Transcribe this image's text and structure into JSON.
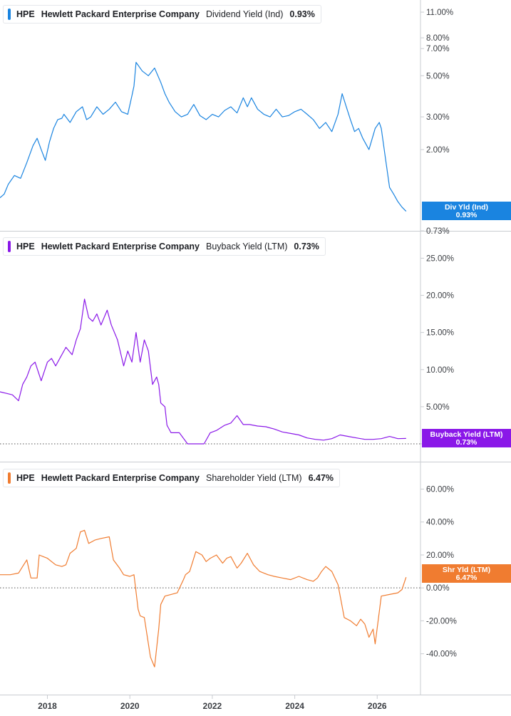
{
  "colors": {
    "dividend": "#1a84e0",
    "buyback": "#8a18e8",
    "shareholder": "#f07c30",
    "grid": "#c9ccd1",
    "axis_text": "#3a3d42",
    "zero_line": "#555555"
  },
  "chart_data": [
    {
      "type": "line",
      "title": "HPE Hewlett Packard Enterprise Company Dividend Yield (Ind) 0.93%",
      "legend": {
        "ticker": "HPE",
        "company": "Hewlett Packard Enterprise Company",
        "metric": "Dividend Yield (Ind)",
        "value": "0.93%"
      },
      "scale": "log",
      "ylim": [
        0.73,
        11.5
      ],
      "y_ticks": [
        0.73,
        2.0,
        3.0,
        5.0,
        7.0,
        8.0,
        11.0
      ],
      "y_tick_labels": [
        "0.73%",
        "2.00%",
        "3.00%",
        "5.00%",
        "7.00%",
        "8.00%",
        "11.00%"
      ],
      "current_label": {
        "line1": "Div Yld (Ind)",
        "line2": "0.93%"
      },
      "series": [
        {
          "name": "Dividend Yield (Ind)",
          "x": [
            2016.85,
            2016.95,
            2017.05,
            2017.2,
            2017.35,
            2017.5,
            2017.65,
            2017.75,
            2017.85,
            2017.95,
            2018.05,
            2018.15,
            2018.25,
            2018.35,
            2018.4,
            2018.55,
            2018.7,
            2018.85,
            2018.95,
            2019.05,
            2019.2,
            2019.35,
            2019.5,
            2019.65,
            2019.8,
            2019.95,
            2020.05,
            2020.1,
            2020.15,
            2020.3,
            2020.45,
            2020.6,
            2020.75,
            2020.85,
            2020.95,
            2021.1,
            2021.25,
            2021.4,
            2021.55,
            2021.7,
            2021.85,
            2022.0,
            2022.15,
            2022.3,
            2022.45,
            2022.6,
            2022.75,
            2022.85,
            2022.95,
            2023.1,
            2023.25,
            2023.4,
            2023.55,
            2023.7,
            2023.85,
            2024.0,
            2024.15,
            2024.3,
            2024.45,
            2024.6,
            2024.75,
            2024.9,
            2025.05,
            2025.15,
            2025.25,
            2025.35,
            2025.45,
            2025.55,
            2025.65,
            2025.8,
            2025.95,
            2026.05,
            2026.1,
            2026.2,
            2026.3,
            2026.4,
            2026.5,
            2026.6,
            2026.7
          ],
          "values": [
            1.1,
            1.15,
            1.3,
            1.45,
            1.4,
            1.7,
            2.1,
            2.3,
            2.0,
            1.75,
            2.2,
            2.6,
            2.9,
            2.95,
            3.1,
            2.8,
            3.2,
            3.4,
            2.9,
            3.0,
            3.4,
            3.1,
            3.3,
            3.6,
            3.2,
            3.1,
            3.9,
            4.4,
            5.9,
            5.3,
            5.0,
            5.5,
            4.6,
            4.0,
            3.6,
            3.2,
            3.0,
            3.1,
            3.5,
            3.05,
            2.9,
            3.1,
            3.0,
            3.25,
            3.4,
            3.15,
            3.8,
            3.4,
            3.8,
            3.3,
            3.1,
            3.0,
            3.3,
            3.0,
            3.05,
            3.2,
            3.3,
            3.1,
            2.9,
            2.6,
            2.8,
            2.5,
            3.1,
            4.0,
            3.4,
            2.9,
            2.5,
            2.6,
            2.3,
            2.0,
            2.6,
            2.8,
            2.6,
            1.8,
            1.25,
            1.15,
            1.05,
            0.98,
            0.93
          ]
        }
      ]
    },
    {
      "type": "line",
      "title": "HPE Hewlett Packard Enterprise Company Buyback Yield (LTM) 0.73%",
      "legend": {
        "ticker": "HPE",
        "company": "Hewlett Packard Enterprise Company",
        "metric": "Buyback Yield (LTM)",
        "value": "0.73%"
      },
      "scale": "linear",
      "ylim": [
        0,
        26
      ],
      "y_ticks": [
        0,
        5,
        10,
        15,
        20,
        25
      ],
      "y_tick_labels": [
        "",
        "5.00%",
        "10.00%",
        "15.00%",
        "20.00%",
        "25.00%"
      ],
      "zero_line": true,
      "current_label": {
        "line1": "Buyback Yield (LTM)",
        "line2": "0.73%"
      },
      "series": [
        {
          "name": "Buyback Yield (LTM)",
          "x": [
            2016.85,
            2017.0,
            2017.15,
            2017.3,
            2017.4,
            2017.5,
            2017.6,
            2017.7,
            2017.85,
            2018.0,
            2018.1,
            2018.2,
            2018.3,
            2018.45,
            2018.6,
            2018.7,
            2018.8,
            2018.9,
            2019.0,
            2019.1,
            2019.2,
            2019.3,
            2019.45,
            2019.55,
            2019.7,
            2019.85,
            2019.95,
            2020.05,
            2020.15,
            2020.25,
            2020.35,
            2020.45,
            2020.55,
            2020.65,
            2020.7,
            2020.75,
            2020.85,
            2020.9,
            2021.0,
            2021.2,
            2021.4,
            2021.6,
            2021.8,
            2021.95,
            2022.1,
            2022.3,
            2022.45,
            2022.6,
            2022.75,
            2022.9,
            2023.1,
            2023.3,
            2023.5,
            2023.7,
            2023.9,
            2024.1,
            2024.3,
            2024.5,
            2024.7,
            2024.9,
            2025.1,
            2025.3,
            2025.5,
            2025.7,
            2025.9,
            2026.1,
            2026.3,
            2026.5,
            2026.7
          ],
          "values": [
            7.0,
            6.8,
            6.6,
            5.8,
            8.0,
            9.0,
            10.5,
            11.0,
            8.5,
            11.0,
            11.5,
            10.5,
            11.5,
            13.0,
            12.0,
            14.0,
            15.5,
            19.5,
            17.0,
            16.5,
            17.5,
            16.0,
            18.0,
            16.0,
            14.0,
            10.5,
            12.5,
            11.0,
            15.0,
            11.0,
            14.0,
            12.5,
            8.0,
            9.0,
            8.0,
            5.5,
            5.0,
            2.5,
            1.5,
            1.5,
            0.0,
            0.0,
            0.0,
            1.5,
            1.8,
            2.5,
            2.8,
            3.8,
            2.6,
            2.6,
            2.4,
            2.3,
            2.0,
            1.6,
            1.4,
            1.2,
            0.8,
            0.6,
            0.5,
            0.7,
            1.2,
            1.0,
            0.8,
            0.6,
            0.6,
            0.7,
            1.0,
            0.7,
            0.73
          ]
        }
      ]
    },
    {
      "type": "line",
      "title": "HPE Hewlett Packard Enterprise Company Shareholder Yield (LTM) 6.47%",
      "legend": {
        "ticker": "HPE",
        "company": "Hewlett Packard Enterprise Company",
        "metric": "Shareholder Yield (LTM)",
        "value": "6.47%"
      },
      "scale": "linear",
      "ylim": [
        -54,
        68
      ],
      "y_ticks": [
        -40,
        -20,
        0,
        20,
        40,
        60
      ],
      "y_tick_labels": [
        "-40.00%",
        "-20.00%",
        "0.00%",
        "20.00%",
        "40.00%",
        "60.00%"
      ],
      "zero_line": true,
      "current_label": {
        "line1": "Shr Yld (LTM)",
        "line2": "6.47%"
      },
      "series": [
        {
          "name": "Shareholder Yield (LTM)",
          "x": [
            2016.85,
            2017.1,
            2017.3,
            2017.4,
            2017.5,
            2017.6,
            2017.75,
            2017.8,
            2017.9,
            2018.0,
            2018.2,
            2018.35,
            2018.45,
            2018.55,
            2018.7,
            2018.8,
            2018.9,
            2019.0,
            2019.15,
            2019.3,
            2019.5,
            2019.6,
            2019.75,
            2019.85,
            2020.0,
            2020.1,
            2020.2,
            2020.25,
            2020.35,
            2020.5,
            2020.6,
            2020.7,
            2020.75,
            2020.85,
            2021.0,
            2021.15,
            2021.3,
            2021.35,
            2021.45,
            2021.6,
            2021.75,
            2021.85,
            2021.95,
            2022.1,
            2022.25,
            2022.35,
            2022.45,
            2022.6,
            2022.7,
            2022.85,
            2023.0,
            2023.15,
            2023.35,
            2023.5,
            2023.7,
            2023.9,
            2024.1,
            2024.3,
            2024.45,
            2024.55,
            2024.65,
            2024.75,
            2024.9,
            2025.05,
            2025.2,
            2025.35,
            2025.5,
            2025.6,
            2025.7,
            2025.8,
            2025.9,
            2025.95,
            2026.1,
            2026.3,
            2026.5,
            2026.6,
            2026.7
          ],
          "values": [
            8.0,
            8.0,
            9.0,
            13.0,
            17.0,
            6.0,
            6.0,
            20.0,
            19.0,
            18.0,
            14.0,
            13.0,
            14.0,
            21.0,
            24.0,
            34.0,
            35.0,
            27.0,
            29.0,
            30.0,
            31.0,
            17.0,
            12.0,
            8.0,
            7.0,
            8.0,
            -13.0,
            -17.0,
            -18.0,
            -42.0,
            -48.0,
            -25.0,
            -10.0,
            -5.0,
            -4.0,
            -3.0,
            5.0,
            8.0,
            10.0,
            22.0,
            20.0,
            16.0,
            18.0,
            20.0,
            15.0,
            18.0,
            19.0,
            12.0,
            15.0,
            21.0,
            14.0,
            10.0,
            8.0,
            7.0,
            6.0,
            5.0,
            7.0,
            5.0,
            4.0,
            6.0,
            10.0,
            13.0,
            10.0,
            2.0,
            -18.0,
            -20.0,
            -23.0,
            -19.0,
            -22.0,
            -30.0,
            -25.0,
            -34.0,
            -5.0,
            -4.0,
            -3.0,
            -1.0,
            6.47
          ]
        }
      ]
    }
  ],
  "x_axis": {
    "ticks": [
      2018,
      2020,
      2022,
      2024,
      2026
    ],
    "tick_labels": [
      "2018",
      "2020",
      "2022",
      "2024",
      "2026"
    ],
    "range": [
      2016.85,
      2027.05
    ]
  }
}
